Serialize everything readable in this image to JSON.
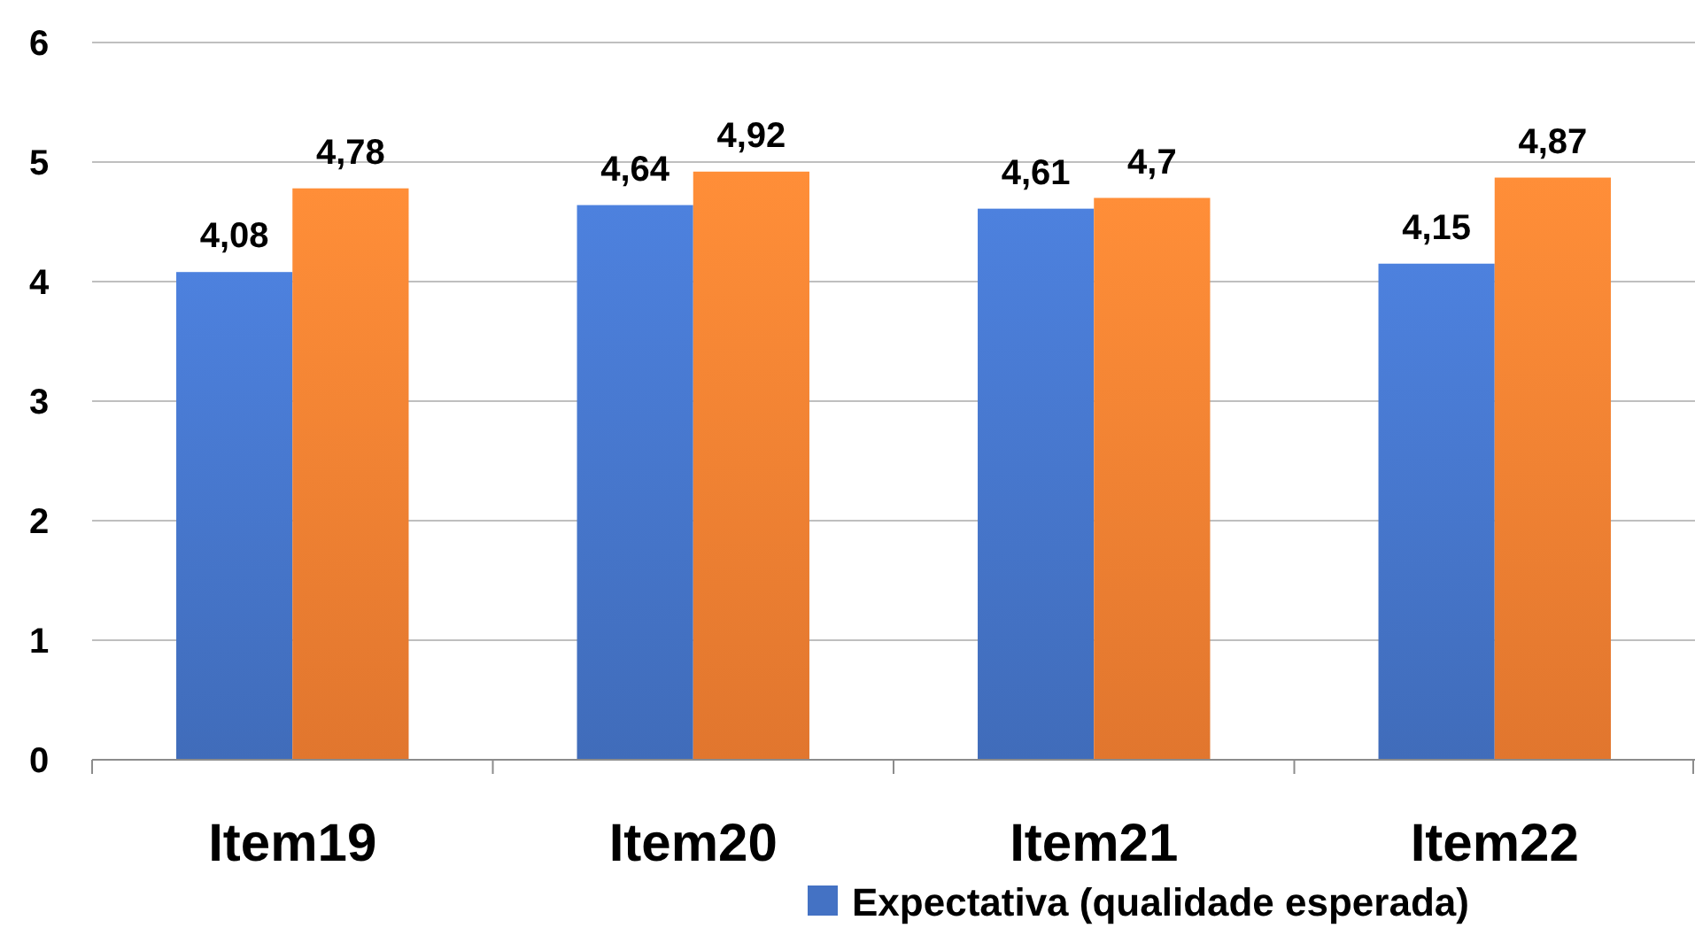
{
  "chart_data": {
    "type": "bar",
    "categories": [
      "Item19",
      "Item20",
      "Item21",
      "Item22"
    ],
    "series": [
      {
        "name": "Expectativa (qualidade esperada)",
        "color": "#4472c4",
        "values": [
          4.08,
          4.64,
          4.61,
          4.15
        ],
        "value_labels": [
          "4,08",
          "4,64",
          "4,61",
          "4,15"
        ]
      },
      {
        "color": "#ed7d31",
        "values": [
          4.78,
          4.92,
          4.7,
          4.87
        ],
        "value_labels": [
          "4,78",
          "4,92",
          "4,7",
          "4,87"
        ]
      }
    ],
    "ylim": [
      0,
      6
    ],
    "yticks": [
      0,
      1,
      2,
      3,
      4,
      5,
      6
    ],
    "grid": "y",
    "legend": "bottom"
  }
}
